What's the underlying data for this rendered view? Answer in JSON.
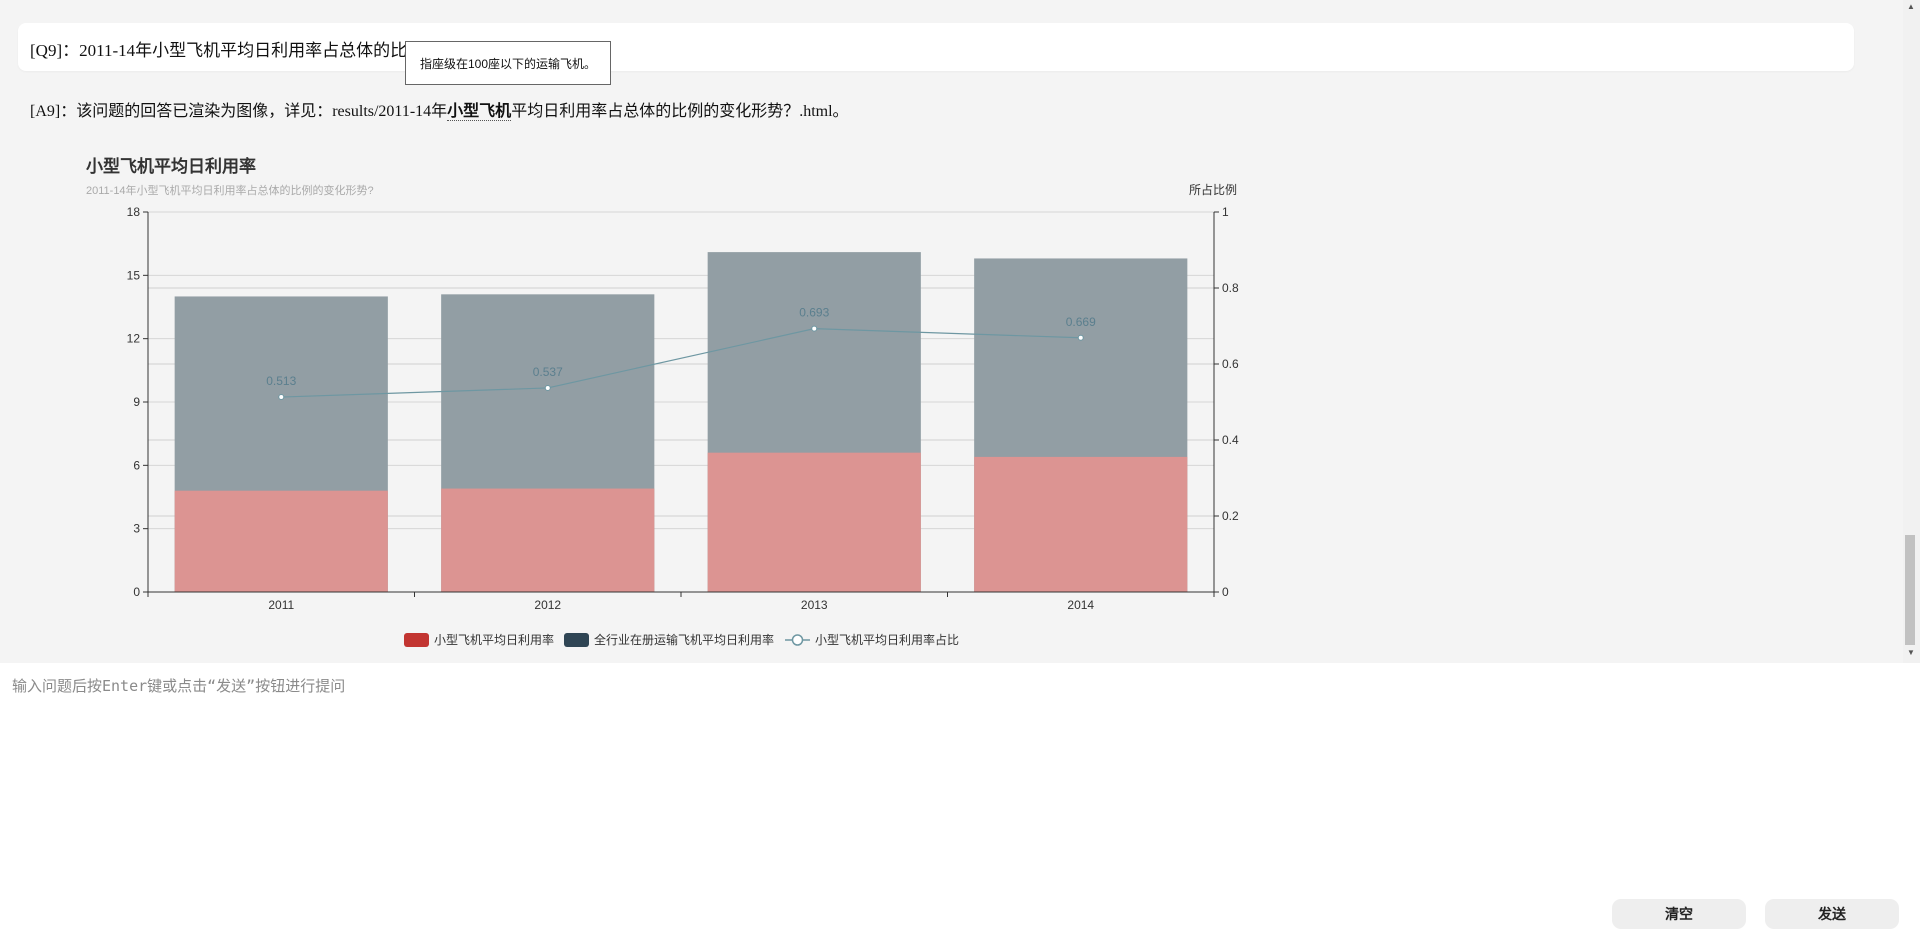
{
  "conversation": {
    "question": "[Q9]：2011-14年小型飞机平均日利用率占总体的比例的变化形势？",
    "tooltip": "指座级在100座以下的运输飞机。",
    "answer_prefix": "[A9]：该问题的回答已渲染为图像，详见：results/2011-14年",
    "answer_highlight": "小型飞机",
    "answer_suffix": "平均日利用率占总体的比例的变化形势？.html。"
  },
  "chart_data": {
    "type": "bar",
    "title": "小型飞机平均日利用率",
    "subtitle": "2011-14年小型飞机平均日利用率占总体的比例的变化形势?",
    "categories": [
      "2011",
      "2012",
      "2013",
      "2014"
    ],
    "y_left": {
      "min": 0,
      "max": 18,
      "ticks": [
        "0",
        "3",
        "6",
        "9",
        "12",
        "15",
        "18"
      ]
    },
    "y_right": {
      "name": "所占比例",
      "min": 0,
      "max": 1,
      "ticks": [
        "0",
        "0.2",
        "0.4",
        "0.6",
        "0.8",
        "1"
      ]
    },
    "series": [
      {
        "name": "小型飞机平均日利用率",
        "type": "bar",
        "axis": "left",
        "values": [
          4.8,
          4.9,
          6.6,
          6.4
        ],
        "color": "#c23531",
        "display_color": "#dc9492"
      },
      {
        "name": "全行业在册运输飞机平均日利用率",
        "type": "bar",
        "axis": "left",
        "values": [
          14.0,
          14.1,
          16.1,
          15.8
        ],
        "color": "#2f4554",
        "display_color": "#929ea4"
      },
      {
        "name": "小型飞机平均日利用率占比",
        "type": "line",
        "axis": "right",
        "values": [
          0.513,
          0.537,
          0.693,
          0.669
        ],
        "labels": [
          "0.513",
          "0.537",
          "0.693",
          "0.669"
        ],
        "color": "#61a0a8",
        "display_color": "#6e97a2"
      }
    ],
    "legend_position": "bottom-center",
    "grid": true
  },
  "input": {
    "placeholder": "输入问题后按Enter键或点击“发送”按钮进行提问"
  },
  "buttons": {
    "clear": "清空",
    "send": "发送"
  }
}
